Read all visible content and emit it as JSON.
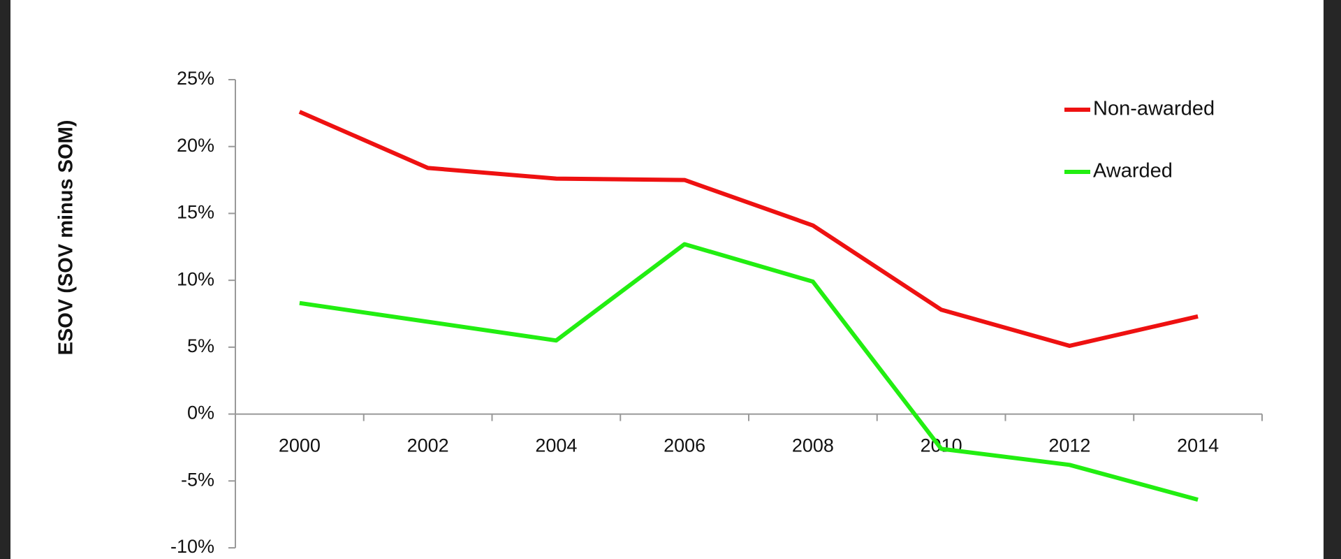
{
  "chart_data": {
    "type": "line",
    "ylabel": "ESOV (SOV minus SOM)",
    "categories": [
      "2000",
      "2002",
      "2004",
      "2006",
      "2008",
      "2010",
      "2012",
      "2014"
    ],
    "series": [
      {
        "name": "Non-awarded",
        "color": "#ee1111",
        "values": [
          22.6,
          18.4,
          17.6,
          17.5,
          14.1,
          7.8,
          5.1,
          7.3
        ]
      },
      {
        "name": "Awarded",
        "color": "#22ee11",
        "values": [
          8.3,
          6.9,
          5.5,
          12.7,
          9.9,
          -2.6,
          -3.8,
          -6.4
        ]
      }
    ],
    "ylim": [
      -10,
      25
    ],
    "yticks": [
      {
        "value": -10,
        "label": "-10%"
      },
      {
        "value": -5,
        "label": "-5%"
      },
      {
        "value": 0,
        "label": "0%"
      },
      {
        "value": 5,
        "label": "5%"
      },
      {
        "value": 10,
        "label": "10%"
      },
      {
        "value": 15,
        "label": "15%"
      },
      {
        "value": 20,
        "label": "20%"
      },
      {
        "value": 25,
        "label": "25%"
      }
    ],
    "legend": "upper right"
  }
}
